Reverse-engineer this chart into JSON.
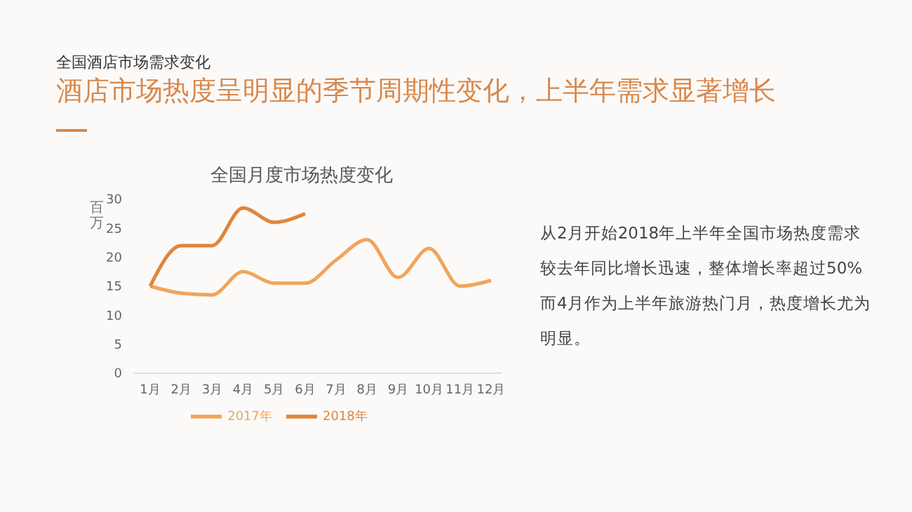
{
  "chart_data": {
    "type": "line",
    "title": "全国月度市场热度变化",
    "ylabel": "百万",
    "annotations": [
      "全国酒店市场需求变化",
      "酒店市场热度呈明显的季节周期性变化，上半年需求显著增长",
      "从2月开始2018年上半年全国市场热度需求较去年同比增长迅速，整体增长率超过50%而4月作为上半年旅游热门月，热度增长尤为明显。"
    ],
    "categories": [
      "1月",
      "2月",
      "3月",
      "4月",
      "5月",
      "6月",
      "7月",
      "8月",
      "9月",
      "10月",
      "11月",
      "12月"
    ],
    "series": [
      {
        "name": "2017年",
        "color": "#f0a55a",
        "values": [
          15,
          13.8,
          13.5,
          17.5,
          15.5,
          15.5,
          19.5,
          23,
          16.5,
          21.5,
          15,
          16
        ]
      },
      {
        "name": "2018年",
        "color": "#e0853a",
        "values": [
          15,
          22,
          22,
          28.5,
          26,
          27.5,
          null,
          null,
          null,
          null,
          null,
          null
        ]
      }
    ],
    "ylim": [
      0,
      30
    ],
    "yticks": [
      0,
      5,
      10,
      15,
      20,
      25,
      30
    ],
    "grid": false,
    "legend": "bottom",
    "marker": "none",
    "line_style": "solid"
  }
}
